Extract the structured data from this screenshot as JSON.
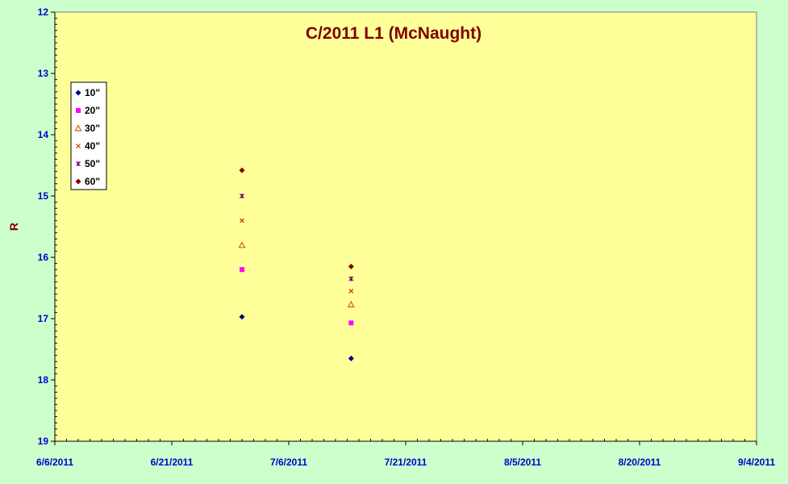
{
  "chart_data": {
    "type": "scatter",
    "title": "C/2011 L1 (McNaught)",
    "xlabel": "",
    "ylabel": "R",
    "x_ticks": [
      "6/6/2011",
      "6/21/2011",
      "7/6/2011",
      "7/21/2011",
      "8/5/2011",
      "8/20/2011",
      "9/4/2011"
    ],
    "xlim": [
      "6/6/2011",
      "9/4/2011"
    ],
    "ylim": [
      12,
      19
    ],
    "y_inverted": true,
    "y_ticks": [
      12,
      13,
      14,
      15,
      16,
      17,
      18,
      19
    ],
    "grid": false,
    "legend_position": "top-left",
    "colors": {
      "plot_background": "#ffff99",
      "page_background": "#ccffcc",
      "axis_label": "#0000cc",
      "title": "#800000"
    },
    "series": [
      {
        "name": "10\"",
        "marker": "diamond",
        "color": "#000080",
        "points": [
          [
            "6/30/2011",
            16.97
          ],
          [
            "7/14/2011",
            17.65
          ]
        ]
      },
      {
        "name": "20\"",
        "marker": "square",
        "color": "#ff00ff",
        "points": [
          [
            "6/30/2011",
            16.2
          ],
          [
            "7/14/2011",
            17.07
          ]
        ]
      },
      {
        "name": "30\"",
        "marker": "triangle",
        "color": "#cc6600",
        "points": [
          [
            "6/30/2011",
            15.8
          ],
          [
            "7/14/2011",
            16.77
          ]
        ]
      },
      {
        "name": "40\"",
        "marker": "x",
        "color": "#cc3300",
        "points": [
          [
            "6/30/2011",
            15.4
          ],
          [
            "7/14/2011",
            16.55
          ]
        ]
      },
      {
        "name": "50\"",
        "marker": "star",
        "color": "#660066",
        "points": [
          [
            "6/30/2011",
            15.0
          ],
          [
            "7/14/2011",
            16.35
          ]
        ]
      },
      {
        "name": "60\"",
        "marker": "diamond",
        "color": "#800000",
        "points": [
          [
            "6/30/2011",
            14.58
          ],
          [
            "7/14/2011",
            16.15
          ]
        ]
      }
    ]
  }
}
